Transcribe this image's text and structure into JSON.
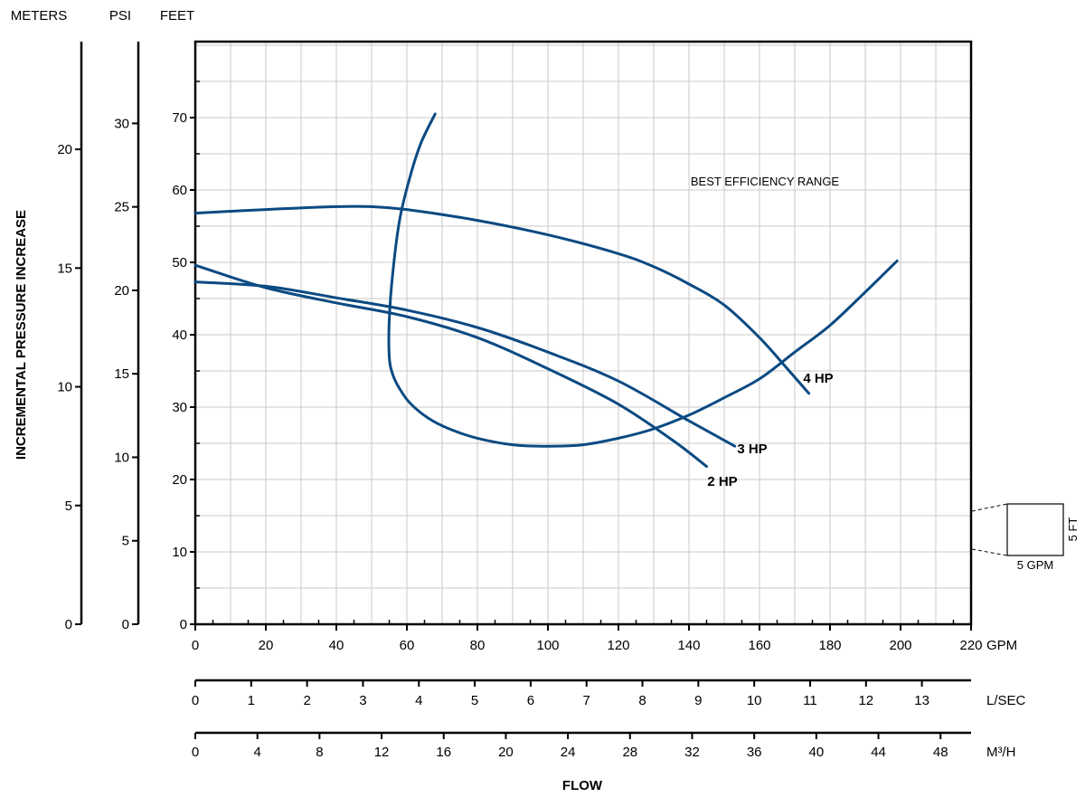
{
  "chart_data": {
    "type": "line",
    "axis_headers": {
      "meters": "METERS",
      "psi": "PSI",
      "feet": "FEET"
    },
    "ylabel": "INCREMENTAL PRESSURE INCREASE",
    "xlabel": "FLOW",
    "annotation": "BEST EFFICIENCY RANGE",
    "x_axes": [
      {
        "unit": "GPM",
        "ticks": [
          "0",
          "20",
          "40",
          "60",
          "80",
          "100",
          "120",
          "140",
          "160",
          "180",
          "200",
          "220"
        ],
        "values": [
          0,
          20,
          40,
          60,
          80,
          100,
          120,
          140,
          160,
          180,
          200,
          220
        ]
      },
      {
        "unit": "L/SEC",
        "ticks": [
          "0",
          "1",
          "2",
          "3",
          "4",
          "5",
          "6",
          "7",
          "8",
          "9",
          "10",
          "11",
          "12",
          "13"
        ],
        "values": [
          0,
          1,
          2,
          3,
          4,
          5,
          6,
          7,
          8,
          9,
          10,
          11,
          12,
          13
        ]
      },
      {
        "unit": "M³/H",
        "ticks": [
          "0",
          "4",
          "8",
          "12",
          "16",
          "20",
          "24",
          "28",
          "32",
          "36",
          "40",
          "44",
          "48"
        ],
        "values": [
          0,
          4,
          8,
          12,
          16,
          20,
          24,
          28,
          32,
          36,
          40,
          44,
          48
        ]
      }
    ],
    "y_axes": [
      {
        "unit": "FEET",
        "ticks": [
          "0",
          "10",
          "20",
          "30",
          "40",
          "50",
          "60",
          "70"
        ],
        "values": [
          0,
          10,
          20,
          30,
          40,
          50,
          60,
          70
        ]
      },
      {
        "unit": "PSI",
        "ticks": [
          "0",
          "5",
          "10",
          "15",
          "20",
          "25",
          "30"
        ],
        "values": [
          0,
          5,
          10,
          15,
          20,
          25,
          30
        ]
      },
      {
        "unit": "METERS",
        "ticks": [
          "0",
          "5",
          "10",
          "15",
          "20"
        ],
        "values": [
          0,
          5,
          10,
          15,
          20
        ]
      }
    ],
    "xlim": [
      0,
      220
    ],
    "ylim": [
      0,
      76
    ],
    "grid": true,
    "series": [
      {
        "name": "4 HP",
        "x": [
          0,
          20,
          40,
          50,
          60,
          80,
          100,
          120,
          130,
          140,
          150,
          160,
          167,
          174
        ],
        "y": [
          56.8,
          57.3,
          57.7,
          57.7,
          57.3,
          55.8,
          53.8,
          51.2,
          49.4,
          47,
          44.1,
          39.6,
          35.8,
          31.9
        ]
      },
      {
        "name": "3 HP",
        "x": [
          0,
          20,
          40,
          60,
          80,
          100,
          120,
          140,
          153
        ],
        "y": [
          47.3,
          46.7,
          45.1,
          43.4,
          41,
          37.6,
          33.6,
          28.1,
          24.6
        ]
      },
      {
        "name": "2 HP",
        "x": [
          0,
          20,
          40,
          60,
          80,
          100,
          120,
          136,
          145
        ],
        "y": [
          49.6,
          46.5,
          44.4,
          42.5,
          39.6,
          35.3,
          30.4,
          25.2,
          21.8
        ]
      }
    ],
    "efficiency_curve": {
      "x": [
        68,
        64,
        61,
        58,
        56,
        55,
        55,
        56,
        58,
        61,
        66,
        72,
        80,
        90,
        100,
        110,
        120,
        130,
        140,
        150,
        160,
        170,
        180,
        190,
        199
      ],
      "y": [
        70.5,
        66.5,
        62,
        56,
        48.5,
        42,
        37,
        34.5,
        32.5,
        30.5,
        28.5,
        27,
        25.7,
        24.8,
        24.6,
        24.8,
        25.7,
        27,
        28.9,
        31.3,
        33.9,
        37.6,
        41.3,
        45.9,
        50.2
      ]
    },
    "scale_box": {
      "width_label": "5 GPM",
      "height_label": "5 FT"
    },
    "colors": {
      "curve": "#0b4a82",
      "grid": "#c8c8c8",
      "axis": "#000000"
    }
  }
}
